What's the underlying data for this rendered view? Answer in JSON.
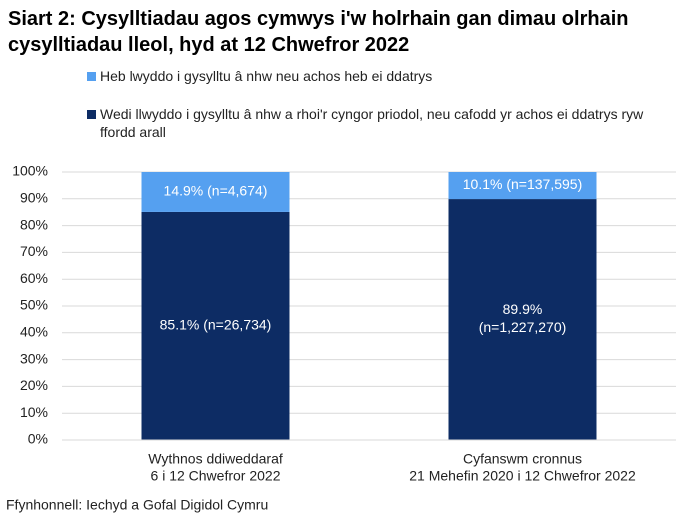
{
  "chart_data": {
    "type": "stacked_bar",
    "title": "Siart 2: Cysylltiadau agos cymwys i'w holrhain gan dimau olrhain cysylltiadau lleol, hyd at 12 Chwefror 2022",
    "categories": [
      [
        "Wythnos ddiweddaraf",
        "6 i 12 Chwefror 2022"
      ],
      [
        "Cyfanswm cronnus",
        "21 Mehefin 2020 i 12 Chwefror 2022"
      ]
    ],
    "series": [
      {
        "name": "Wedi llwyddo i gysylltu â nhw a rhoi'r cyngor priodol, neu cafodd yr achos ei ddatrys ryw ffordd arall",
        "color": "#0d2c64",
        "values": [
          85.1,
          89.9
        ],
        "value_labels": [
          [
            "85.1% (n=26,734)"
          ],
          [
            "89.9%",
            "(n=1,227,270)"
          ]
        ]
      },
      {
        "name": "Heb lwyddo i gysylltu â nhw neu achos heb ei ddatrys",
        "color": "#55a0f0",
        "values": [
          14.9,
          10.1
        ],
        "value_labels": [
          [
            "14.9% (n=4,674)"
          ],
          [
            "10.1% (n=137,595)"
          ]
        ]
      }
    ],
    "ylim": [
      0,
      100
    ],
    "yticks": [
      {
        "value": 0,
        "label": "0%"
      },
      {
        "value": 10,
        "label": "10%"
      },
      {
        "value": 20,
        "label": "20%"
      },
      {
        "value": 30,
        "label": "30%"
      },
      {
        "value": 40,
        "label": "40%"
      },
      {
        "value": 50,
        "label": "50%"
      },
      {
        "value": 60,
        "label": "60%"
      },
      {
        "value": 70,
        "label": "70%"
      },
      {
        "value": 80,
        "label": "80%"
      },
      {
        "value": 90,
        "label": "90%"
      },
      {
        "value": 100,
        "label": "100%"
      }
    ],
    "grid": true,
    "source": "Ffynhonnell: Iechyd a Gofal Digidol Cymru"
  }
}
